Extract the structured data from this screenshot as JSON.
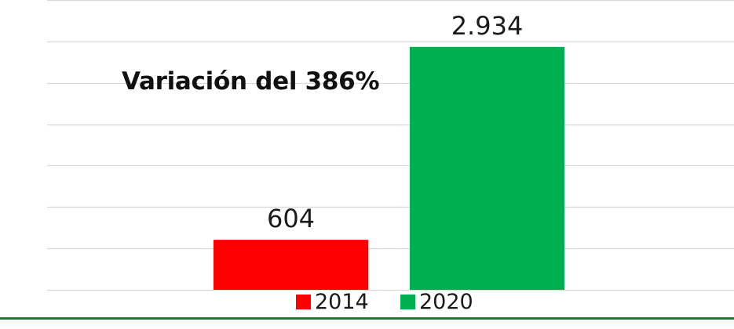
{
  "chart_data": {
    "type": "bar",
    "categories": [
      "2014",
      "2020"
    ],
    "series": [
      {
        "name": "2014",
        "values": [
          604,
          null
        ],
        "color": "#ff0000"
      },
      {
        "name": "2020",
        "values": [
          null,
          2934
        ],
        "color": "#00b050"
      }
    ],
    "values": [
      604,
      2934
    ],
    "data_labels": [
      "604",
      "2.934"
    ],
    "title": "",
    "xlabel": "",
    "ylabel": "",
    "ylim": [
      0,
      3500
    ],
    "grid": true,
    "legend_position": "bottom",
    "annotation": "Variación del 386%"
  },
  "legend": [
    {
      "label": "2014",
      "color": "#ff0000"
    },
    {
      "label": "2020",
      "color": "#00b050"
    }
  ],
  "colors": {
    "gridline": "#d9d9d9",
    "accent_rule": "#1e7a35"
  }
}
